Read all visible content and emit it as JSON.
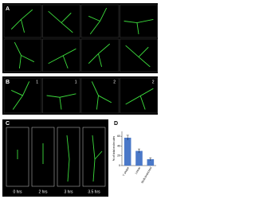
{
  "figure": {
    "panels": [
      "A",
      "B",
      "C",
      "D"
    ],
    "b_labels": [
      "1",
      "1",
      "2",
      "2"
    ],
    "c_times": [
      "0 hrs",
      "2 hrs",
      "3 hrs",
      "3.5 hrs"
    ]
  },
  "chart_data": {
    "type": "bar",
    "y_label": "% of total molecules",
    "categories": [
      "Y shape",
      "Linear",
      "Multi-branched"
    ],
    "values": [
      57,
      30,
      13
    ],
    "errors": [
      5,
      4,
      3
    ],
    "color": "#4a78c8",
    "ylim": [
      0,
      70
    ],
    "yticks": [
      0,
      20,
      40,
      60
    ]
  }
}
